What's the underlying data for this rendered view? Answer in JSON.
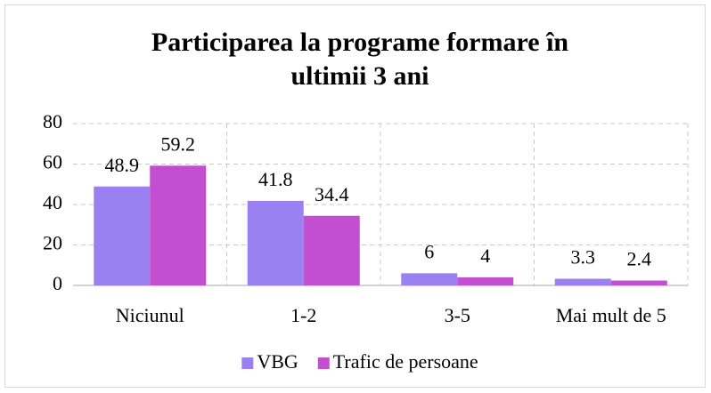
{
  "chart_data": {
    "type": "bar",
    "title": [
      "Participarea la programe formare în",
      "ultimii 3 ani"
    ],
    "categories": [
      "Niciunul",
      "1-2",
      "3-5",
      "Mai mult de 5"
    ],
    "series": [
      {
        "name": "VBG",
        "color": "#9b80f2",
        "values": [
          48.9,
          41.8,
          6,
          3.3
        ]
      },
      {
        "name": "Trafic de persoane",
        "color": "#c14fd0",
        "values": [
          59.2,
          34.4,
          4,
          2.4
        ]
      }
    ],
    "ylim": [
      0,
      80
    ],
    "yticks": [
      0,
      20,
      40,
      60,
      80
    ],
    "grid": true,
    "legend": "bottom"
  }
}
